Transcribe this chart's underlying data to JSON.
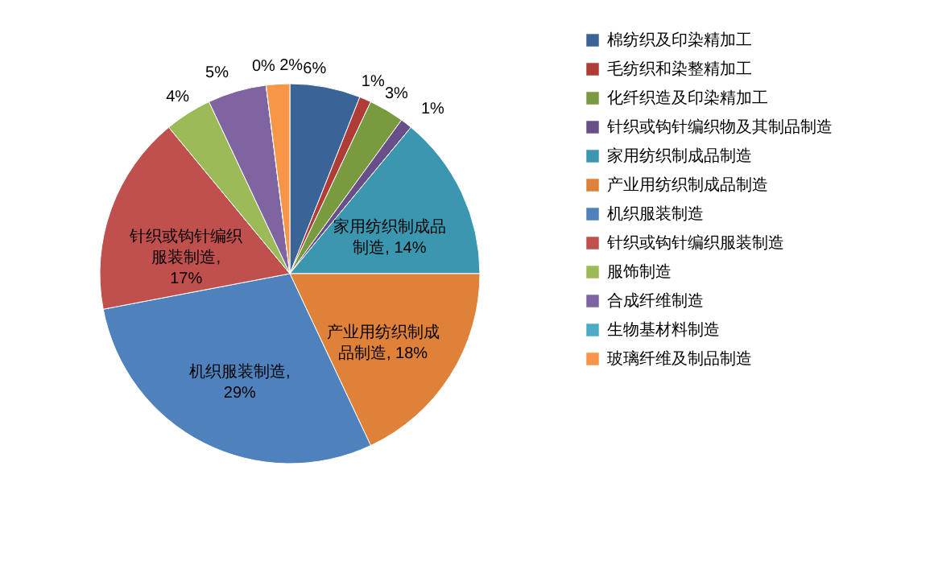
{
  "chart_data": {
    "type": "pie",
    "categories": [
      "棉纺织及印染精加工",
      "毛纺织和染整精加工",
      "化纤织造及印染精加工",
      "针织或钩针编织物及其制品制造",
      "家用纺织制成品制造",
      "产业用纺织制成品制造",
      "机织服装制造",
      "针织或钩针编织服装制造",
      "服饰制造",
      "合成纤维制造",
      "生物基材料制造",
      "玻璃纤维及制品制造"
    ],
    "values": [
      6,
      1,
      3,
      1,
      14,
      18,
      29,
      17,
      4,
      5,
      0,
      2
    ],
    "colors": [
      "#3a6496",
      "#b03c38",
      "#7a9a3f",
      "#684f8a",
      "#3b97b0",
      "#df8139",
      "#4f81bd",
      "#c0504d",
      "#9bbb59",
      "#8064a2",
      "#4bacc6",
      "#f79646"
    ],
    "value_labels": [
      "6%",
      "1%",
      "3%",
      "1%",
      "家用纺织制成品制造, 14%",
      "产业用纺织制成品制造, 18%",
      "机织服装制造, 29%",
      "针织或钩针编织服装制造, 17%",
      "4%",
      "5%",
      "0%",
      "2%"
    ],
    "legend": "right"
  }
}
